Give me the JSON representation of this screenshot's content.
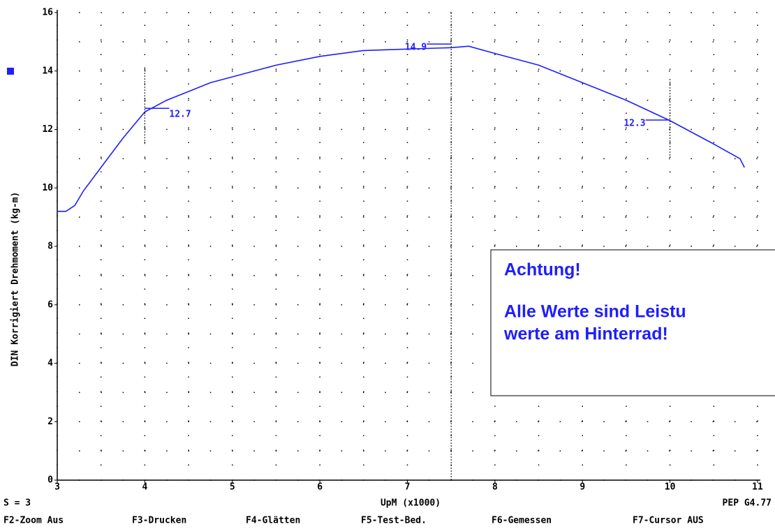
{
  "chart_data": {
    "type": "line",
    "ylabel": "DIN Korrigiert Drehmoment (kg-m)",
    "xlabel": "UpM (x1000)",
    "series": [
      {
        "color": "#1e1eff",
        "x": [
          3.0,
          3.1,
          3.2,
          3.3,
          3.5,
          3.75,
          4.0,
          4.25,
          4.5,
          4.75,
          5.0,
          5.5,
          6.0,
          6.5,
          7.0,
          7.5,
          7.7,
          8.0,
          8.5,
          9.0,
          9.5,
          10.0,
          10.5,
          10.8,
          10.85
        ],
        "values": [
          9.2,
          9.2,
          9.4,
          9.9,
          10.7,
          11.7,
          12.6,
          13.0,
          13.3,
          13.6,
          13.8,
          14.2,
          14.5,
          14.7,
          14.75,
          14.8,
          14.85,
          14.6,
          14.2,
          13.6,
          13.0,
          12.3,
          11.5,
          11.0,
          10.7
        ]
      }
    ],
    "cursors": [
      {
        "x": 4,
        "y": 12.7
      },
      {
        "x": 7.5,
        "y": 14.9
      },
      {
        "x": 10,
        "y": 12.3
      }
    ],
    "xlim": [
      3,
      11
    ],
    "ylim": [
      0,
      16
    ],
    "xticks": [
      3,
      4,
      5,
      6,
      7,
      8,
      9,
      10,
      11
    ],
    "yticks": [
      0,
      2,
      4,
      6,
      8,
      10,
      12,
      14,
      16
    ],
    "minor_xticks": [
      3.5,
      4.5,
      5.5,
      6.5,
      7.5,
      8.5,
      9.5,
      10.5
    ],
    "minor_yticks": [
      1,
      3,
      5,
      7,
      9,
      11,
      13,
      15
    ],
    "grid": true,
    "status_left": "S = 3",
    "status_right": "PEP G4.77",
    "function_keys": [
      "F2-Zoom Aus",
      "F3-Drucken",
      "F4-Glätten",
      "F5-Test-Bed.",
      "F6-Gemessen",
      "F7-Cursor AUS"
    ],
    "note": [
      "Achtung!",
      "Alle Werte sind Leistu",
      "werte am Hinterrad!"
    ]
  }
}
